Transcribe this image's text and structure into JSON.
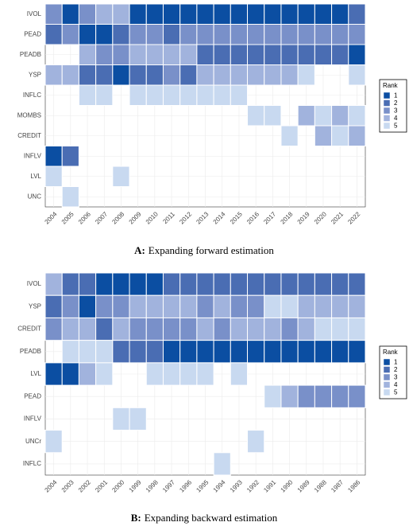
{
  "chart_data": [
    {
      "type": "heatmap",
      "caption_label": "A:",
      "caption": "Expanding forward estimation",
      "x": [
        "2004",
        "2005",
        "2006",
        "2007",
        "2008",
        "2009",
        "2010",
        "2011",
        "2012",
        "2013",
        "2014",
        "2015",
        "2016",
        "2017",
        "2018",
        "2019",
        "2020",
        "2021",
        "2022"
      ],
      "y": [
        "IVOL",
        "PEAD",
        "PEADB",
        "YSP",
        "INFLC",
        "MOMBS",
        "CREDIT",
        "INFLV",
        "LVL",
        "UNC"
      ],
      "values": [
        [
          3,
          1,
          3,
          4,
          4,
          1,
          1,
          1,
          1,
          1,
          1,
          1,
          1,
          1,
          1,
          1,
          1,
          1,
          2
        ],
        [
          2,
          3,
          1,
          1,
          2,
          3,
          3,
          2,
          3,
          3,
          3,
          3,
          3,
          3,
          3,
          3,
          3,
          3,
          3
        ],
        [
          null,
          null,
          4,
          3,
          3,
          4,
          4,
          4,
          4,
          2,
          2,
          2,
          2,
          2,
          2,
          2,
          2,
          2,
          1
        ],
        [
          4,
          4,
          2,
          2,
          1,
          2,
          2,
          3,
          2,
          4,
          4,
          4,
          4,
          4,
          4,
          5,
          null,
          null,
          5
        ],
        [
          null,
          null,
          5,
          5,
          null,
          5,
          5,
          5,
          5,
          5,
          5,
          5,
          null,
          null,
          null,
          null,
          null,
          null,
          null
        ],
        [
          null,
          null,
          null,
          null,
          null,
          null,
          null,
          null,
          null,
          null,
          null,
          null,
          5,
          5,
          null,
          4,
          5,
          4,
          5
        ],
        [
          null,
          null,
          null,
          null,
          null,
          null,
          null,
          null,
          null,
          null,
          null,
          null,
          null,
          null,
          5,
          null,
          4,
          5,
          4
        ],
        [
          1,
          2,
          null,
          null,
          null,
          null,
          null,
          null,
          null,
          null,
          null,
          null,
          null,
          null,
          null,
          null,
          null,
          null,
          null
        ],
        [
          5,
          null,
          null,
          null,
          5,
          null,
          null,
          null,
          null,
          null,
          null,
          null,
          null,
          null,
          null,
          null,
          null,
          null,
          null
        ],
        [
          null,
          5,
          null,
          null,
          null,
          null,
          null,
          null,
          null,
          null,
          null,
          null,
          null,
          null,
          null,
          null,
          null,
          null,
          null
        ]
      ],
      "legend": {
        "title": "Rank",
        "levels": [
          1,
          2,
          3,
          4,
          5
        ],
        "colors": [
          "#0b4ea2",
          "#4a6db3",
          "#7990c9",
          "#a1b3dd",
          "#c8d9f0"
        ]
      }
    },
    {
      "type": "heatmap",
      "caption_label": "B:",
      "caption": "Expanding backward estimation",
      "x": [
        "2004",
        "2003",
        "2002",
        "2001",
        "2000",
        "1999",
        "1998",
        "1997",
        "1996",
        "1995",
        "1994",
        "1993",
        "1992",
        "1991",
        "1990",
        "1989",
        "1988",
        "1987",
        "1986"
      ],
      "y": [
        "IVOL",
        "YSP",
        "CREDIT",
        "PEADB",
        "LVL",
        "PEAD",
        "INFLV",
        "UNCr",
        "INFLC"
      ],
      "values": [
        [
          4,
          2,
          2,
          1,
          1,
          1,
          1,
          2,
          2,
          2,
          2,
          2,
          2,
          2,
          2,
          2,
          2,
          2,
          2
        ],
        [
          2,
          3,
          1,
          3,
          3,
          4,
          4,
          4,
          4,
          3,
          4,
          3,
          3,
          5,
          5,
          4,
          4,
          4,
          4
        ],
        [
          3,
          4,
          4,
          2,
          4,
          3,
          3,
          3,
          3,
          4,
          3,
          4,
          4,
          4,
          3,
          4,
          5,
          5,
          5
        ],
        [
          null,
          5,
          5,
          5,
          2,
          2,
          2,
          1,
          1,
          1,
          1,
          1,
          1,
          1,
          1,
          1,
          1,
          1,
          1
        ],
        [
          1,
          1,
          4,
          5,
          null,
          null,
          5,
          5,
          5,
          5,
          null,
          5,
          null,
          null,
          null,
          null,
          null,
          null,
          null
        ],
        [
          null,
          null,
          null,
          null,
          null,
          null,
          null,
          null,
          null,
          null,
          null,
          null,
          null,
          5,
          4,
          3,
          3,
          3,
          3
        ],
        [
          null,
          null,
          null,
          null,
          5,
          5,
          null,
          null,
          null,
          null,
          null,
          null,
          null,
          null,
          null,
          null,
          null,
          null,
          null
        ],
        [
          5,
          null,
          null,
          null,
          null,
          null,
          null,
          null,
          null,
          null,
          null,
          null,
          5,
          null,
          null,
          null,
          null,
          null,
          null
        ],
        [
          null,
          null,
          null,
          null,
          null,
          null,
          null,
          null,
          null,
          null,
          5,
          null,
          null,
          null,
          null,
          null,
          null,
          null,
          null
        ]
      ],
      "legend": {
        "title": "Rank",
        "levels": [
          1,
          2,
          3,
          4,
          5
        ],
        "colors": [
          "#0b4ea2",
          "#4a6db3",
          "#7990c9",
          "#a1b3dd",
          "#c8d9f0"
        ]
      }
    }
  ]
}
